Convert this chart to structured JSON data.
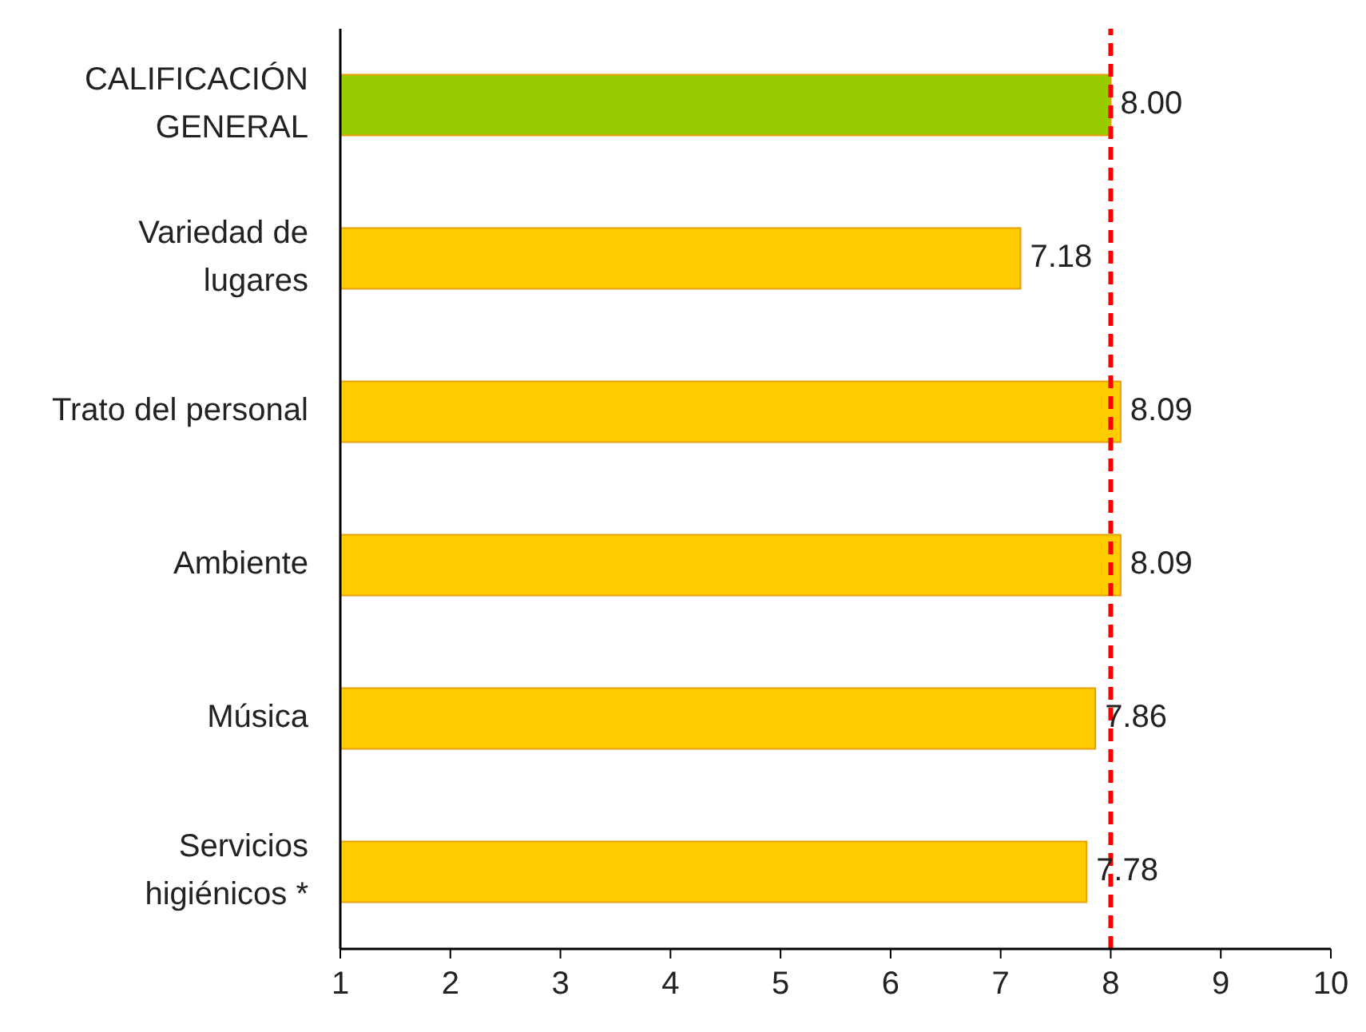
{
  "chart_data": {
    "type": "bar",
    "orientation": "horizontal",
    "categories": [
      "CALIFICACIÓN GENERAL",
      "Variedad de lugares",
      "Trato del personal",
      "Ambiente",
      "Música",
      "Servicios higiénicos *"
    ],
    "values": [
      8.0,
      7.18,
      8.09,
      8.09,
      7.86,
      7.78
    ],
    "value_labels": [
      "8.00",
      "7.18",
      "8.09",
      "8.09",
      "7.86",
      "7.78"
    ],
    "colors": [
      "#99cc00",
      "#ffcc00",
      "#ffcc00",
      "#ffcc00",
      "#ffcc00",
      "#ffcc00"
    ],
    "xlim": [
      1,
      10
    ],
    "xticks": [
      1,
      2,
      3,
      4,
      5,
      6,
      7,
      8,
      9,
      10
    ],
    "ref_lines": [
      {
        "axis": "x",
        "value": 8,
        "color": "#ff0000",
        "line_style": "dashed"
      }
    ],
    "grid": false
  }
}
